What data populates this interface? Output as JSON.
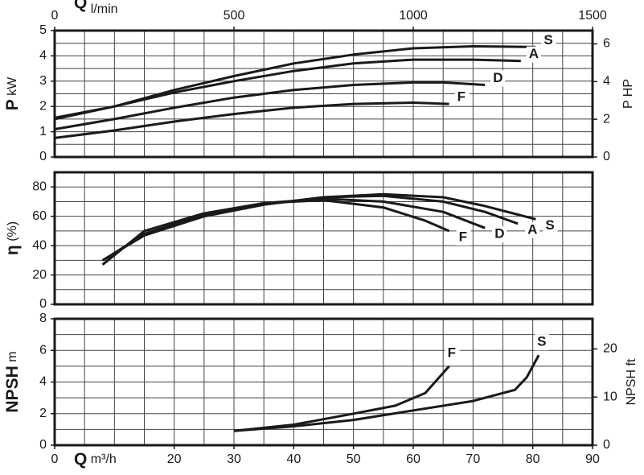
{
  "chart_data": [
    {
      "type": "line",
      "y_label": "P",
      "y_unit": "kW",
      "y2_label": "P HP",
      "x_label": "Q",
      "x_unit": "l/min",
      "xlim": [
        0,
        90
      ],
      "x2lim": [
        0,
        1500
      ],
      "x2ticks": [
        0,
        500,
        1000,
        1500
      ],
      "ylim": [
        0,
        5
      ],
      "yticks": [
        0,
        1,
        2,
        3,
        4,
        5
      ],
      "y2lim": [
        0,
        6.705
      ],
      "y2ticks": [
        0,
        2,
        4,
        6
      ],
      "grid_step": {
        "x": 5,
        "y": 0.5
      },
      "series": [
        {
          "name": "S",
          "color": "#1a1a1a",
          "x": [
            0,
            10,
            20,
            30,
            40,
            50,
            60,
            70,
            80.5
          ],
          "values": [
            1.5,
            2.0,
            2.65,
            3.2,
            3.7,
            4.05,
            4.3,
            4.38,
            4.35
          ]
        },
        {
          "name": "A",
          "color": "#1a1a1a",
          "x": [
            0,
            10,
            20,
            30,
            40,
            50,
            60,
            70,
            78
          ],
          "values": [
            1.55,
            2.0,
            2.55,
            3.0,
            3.4,
            3.7,
            3.85,
            3.85,
            3.8
          ]
        },
        {
          "name": "D",
          "color": "#1a1a1a",
          "x": [
            0,
            10,
            20,
            30,
            40,
            50,
            60,
            65,
            72
          ],
          "values": [
            1.1,
            1.5,
            1.95,
            2.35,
            2.65,
            2.85,
            2.95,
            2.95,
            2.85
          ]
        },
        {
          "name": "F",
          "color": "#1a1a1a",
          "x": [
            0,
            10,
            20,
            30,
            40,
            50,
            60,
            66
          ],
          "values": [
            0.75,
            1.05,
            1.4,
            1.7,
            1.95,
            2.1,
            2.15,
            2.1
          ]
        }
      ]
    },
    {
      "type": "line",
      "y_label": "η",
      "y_unit": "(%)",
      "xlim": [
        0,
        90
      ],
      "ylim": [
        0,
        90
      ],
      "yticks": [
        0,
        20,
        40,
        60,
        80
      ],
      "grid_step": {
        "x": 5,
        "y": 10
      },
      "series": [
        {
          "name": "S",
          "color": "#1a1a1a",
          "x": [
            8,
            15,
            25,
            35,
            45,
            55,
            65,
            72,
            80.5
          ],
          "values": [
            30,
            47,
            60,
            68,
            73,
            75,
            73,
            67,
            58
          ]
        },
        {
          "name": "A",
          "color": "#1a1a1a",
          "x": [
            8.5,
            15,
            25,
            35,
            45,
            55,
            65,
            72,
            77.5
          ],
          "values": [
            31,
            48,
            60,
            68,
            73,
            74,
            70,
            63,
            55
          ]
        },
        {
          "name": "D",
          "color": "#1a1a1a",
          "x": [
            9,
            15,
            25,
            35,
            45,
            55,
            65,
            72
          ],
          "values": [
            32,
            48,
            61,
            69,
            72,
            70,
            63,
            52
          ]
        },
        {
          "name": "F",
          "color": "#1a1a1a",
          "x": [
            8,
            15,
            25,
            35,
            45,
            55,
            62,
            66
          ],
          "values": [
            27,
            50,
            62,
            69,
            71,
            66,
            57,
            50
          ]
        }
      ]
    },
    {
      "type": "line",
      "y_label": "NPSH",
      "y_unit": "m",
      "y2_label": "NPSH ft",
      "x_label": "Q",
      "x_unit": "m³/h",
      "xlim": [
        0,
        90
      ],
      "xticks": [
        0,
        20,
        30,
        40,
        50,
        60,
        70,
        80,
        90
      ],
      "ylim": [
        0,
        8
      ],
      "yticks": [
        0,
        2,
        4,
        6,
        8
      ],
      "y2lim": [
        0,
        26.25
      ],
      "y2ticks": [
        0,
        10,
        20
      ],
      "grid_step": {
        "x": 5,
        "y": 1
      },
      "series": [
        {
          "name": "F",
          "color": "#1a1a1a",
          "x": [
            30,
            40,
            50,
            57,
            62,
            66
          ],
          "values": [
            0.9,
            1.3,
            2.0,
            2.5,
            3.3,
            5.0
          ]
        },
        {
          "name": "S",
          "color": "#1a1a1a",
          "x": [
            30,
            40,
            50,
            60,
            70,
            77,
            79,
            81
          ],
          "values": [
            0.9,
            1.2,
            1.6,
            2.2,
            2.8,
            3.5,
            4.3,
            5.7
          ]
        }
      ]
    }
  ]
}
